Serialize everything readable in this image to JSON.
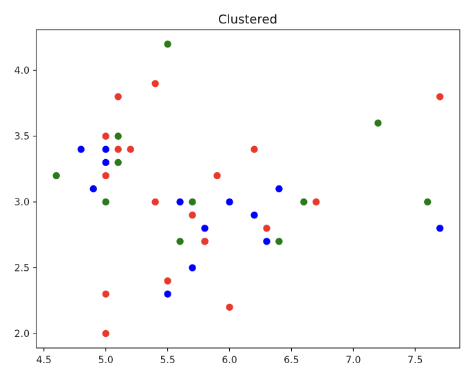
{
  "chart_data": {
    "type": "scatter",
    "title": "Clustered",
    "xlabel": "",
    "ylabel": "",
    "xlim": [
      4.44,
      7.86
    ],
    "ylim": [
      1.89,
      4.31
    ],
    "xticks": [
      4.5,
      5.0,
      5.5,
      6.0,
      6.5,
      7.0,
      7.5
    ],
    "yticks": [
      2.0,
      2.5,
      3.0,
      3.5,
      4.0
    ],
    "xtick_labels": [
      "4.5",
      "5.0",
      "5.5",
      "6.0",
      "6.5",
      "7.0",
      "7.5"
    ],
    "ytick_labels": [
      "2.0",
      "2.5",
      "3.0",
      "3.5",
      "4.0"
    ],
    "grid": false,
    "legend": false,
    "series": [
      {
        "color": "#0000ff",
        "points": [
          [
            4.8,
            3.4
          ],
          [
            5.0,
            3.4
          ],
          [
            5.0,
            3.3
          ],
          [
            4.9,
            3.1
          ],
          [
            5.6,
            3.0
          ],
          [
            6.0,
            3.0
          ],
          [
            5.8,
            2.8
          ],
          [
            6.2,
            2.9
          ],
          [
            6.4,
            3.1
          ],
          [
            6.3,
            2.7
          ],
          [
            5.8,
            2.7
          ],
          [
            5.7,
            2.5
          ],
          [
            5.5,
            2.3
          ],
          [
            7.7,
            2.8
          ]
        ]
      },
      {
        "color": "#2a7a1a",
        "points": [
          [
            4.6,
            3.2
          ],
          [
            5.0,
            3.0
          ],
          [
            5.1,
            3.5
          ],
          [
            5.1,
            3.3
          ],
          [
            5.5,
            4.2
          ],
          [
            5.6,
            2.7
          ],
          [
            5.7,
            3.0
          ],
          [
            6.4,
            2.7
          ],
          [
            6.6,
            3.0
          ],
          [
            7.2,
            3.6
          ],
          [
            7.6,
            3.0
          ]
        ]
      },
      {
        "color": "#e8392b",
        "points": [
          [
            5.0,
            3.5
          ],
          [
            5.0,
            3.2
          ],
          [
            5.1,
            3.4
          ],
          [
            5.1,
            3.8
          ],
          [
            5.2,
            3.4
          ],
          [
            5.4,
            3.9
          ],
          [
            5.4,
            3.0
          ],
          [
            5.0,
            2.3
          ],
          [
            5.0,
            2.0
          ],
          [
            5.5,
            2.4
          ],
          [
            5.7,
            2.9
          ],
          [
            5.8,
            2.7
          ],
          [
            5.9,
            3.2
          ],
          [
            6.0,
            2.2
          ],
          [
            6.2,
            3.4
          ],
          [
            6.3,
            2.8
          ],
          [
            6.7,
            3.0
          ],
          [
            7.7,
            3.8
          ]
        ]
      }
    ]
  }
}
